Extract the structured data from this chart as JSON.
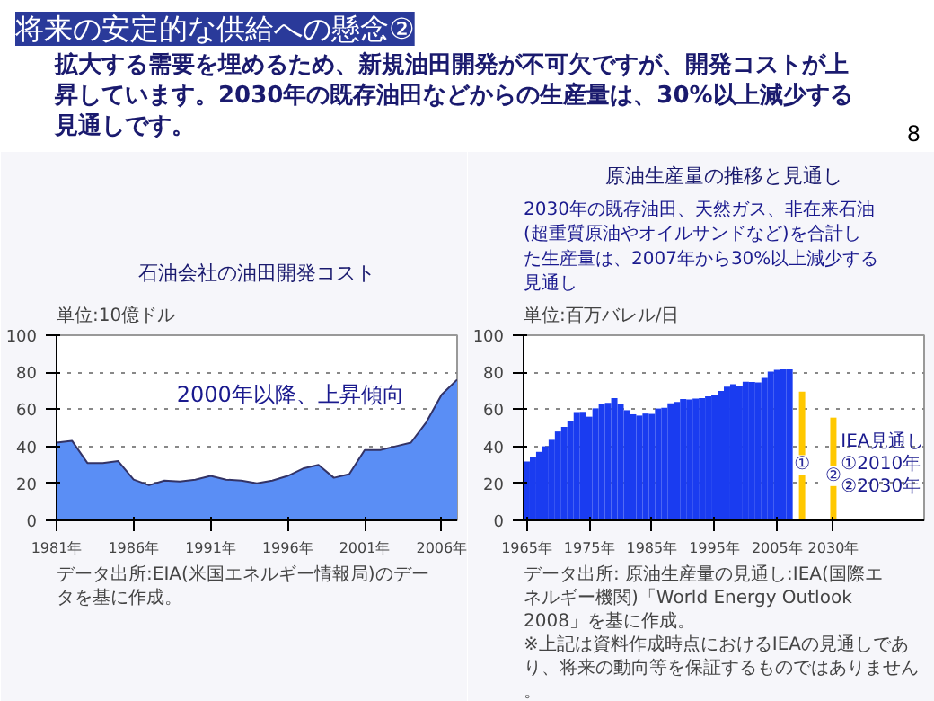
{
  "chart_data": [
    {
      "type": "other",
      "title": "将来の安定的な供給への懸念②",
      "annotations": [
        "拡大する需要を埋めるため、新規油田開発が不可欠ですが、開発コストが上昇しています。2030年の既存油田などからの生産量は、30%以上減少する見通しです。",
        "8"
      ]
    },
    {
      "type": "area",
      "title": "石油会社の油田開発コスト",
      "ylabel": "単位:10億ドル",
      "xlim": [
        1981,
        2007
      ],
      "ylim": [
        0,
        100
      ],
      "yticks": [
        0,
        20,
        40,
        60,
        80,
        100
      ],
      "xticks": [
        {
          "value": 1981,
          "label": "1981年"
        },
        {
          "value": 1986,
          "label": "1986年"
        },
        {
          "value": 1991,
          "label": "1991年"
        },
        {
          "value": 1996,
          "label": "1996年"
        },
        {
          "value": 2001,
          "label": "2001年"
        },
        {
          "value": 2006,
          "label": "2006年"
        }
      ],
      "grid": "y",
      "series": [
        {
          "type": "area",
          "color": "#5a8ef5",
          "x": [
            1981,
            1982,
            1983,
            1984,
            1985,
            1986,
            1987,
            1988,
            1989,
            1990,
            1991,
            1992,
            1993,
            1994,
            1995,
            1996,
            1997,
            1998,
            1999,
            2000,
            2001,
            2002,
            2003,
            2004,
            2005,
            2006,
            2007
          ],
          "values": [
            42,
            43,
            31,
            31,
            32,
            22,
            19,
            21.5,
            21,
            22,
            24,
            22,
            21.5,
            20,
            21.5,
            24,
            28,
            30,
            23,
            25,
            38,
            38,
            40,
            42,
            53,
            68,
            76
          ]
        }
      ],
      "annotations": [
        "2000年以降、上昇傾向",
        "データ出所:EIA(米国エネルギー情報局)のデータを基に作成。"
      ]
    },
    {
      "type": "bar",
      "title": "原油生産量の推移と見通し",
      "subtitle": "2030年の既存油田、天然ガス、非在来石油(超重質原油やオイルサンドなど)を合計した生産量は、2007年から30%以上減少する見通し",
      "ylabel": "単位:百万バレル/日",
      "ylim": [
        0,
        100
      ],
      "yticks": [
        0,
        20,
        40,
        60,
        80,
        100
      ],
      "categories": [
        "1965年",
        null,
        null,
        null,
        null,
        null,
        null,
        null,
        null,
        null,
        "1975年",
        null,
        null,
        null,
        null,
        null,
        null,
        null,
        null,
        null,
        "1985年",
        null,
        null,
        null,
        null,
        null,
        null,
        null,
        null,
        null,
        "1995年",
        null,
        null,
        null,
        null,
        null,
        null,
        null,
        null,
        null,
        "2005年",
        null,
        null,
        null,
        null,
        null,
        null,
        null,
        null,
        "2030年"
      ],
      "grid": "y",
      "series": [
        {
          "type": "bar",
          "color": "#1a3cf0",
          "values": [
            31.8,
            34,
            37,
            40,
            43.5,
            48,
            50.5,
            53.5,
            58.5,
            58.6,
            56,
            60.5,
            63,
            63.5,
            66,
            63,
            59.5,
            57.3,
            56.6,
            57.7,
            57.5,
            60.4,
            60.8,
            63.2,
            64,
            65.5,
            65.3,
            65.8,
            66,
            67,
            68,
            69.9,
            72.2,
            73.6,
            72.3,
            74.9,
            74.8,
            74.5,
            77,
            80.3,
            81.3,
            81.5,
            81.5,
            null,
            null,
            null,
            null,
            null,
            null,
            null
          ]
        },
        {
          "type": "bar",
          "color": "#ffc800",
          "values": [
            null,
            null,
            null,
            null,
            null,
            null,
            null,
            null,
            null,
            null,
            null,
            null,
            null,
            null,
            null,
            null,
            null,
            null,
            null,
            null,
            null,
            null,
            null,
            null,
            null,
            null,
            null,
            null,
            null,
            null,
            null,
            null,
            null,
            null,
            null,
            null,
            null,
            null,
            null,
            null,
            null,
            null,
            null,
            null,
            69.5,
            null,
            null,
            null,
            null,
            55.5
          ],
          "value_labels": [
            null,
            null,
            null,
            null,
            null,
            null,
            null,
            null,
            null,
            null,
            null,
            null,
            null,
            null,
            null,
            null,
            null,
            null,
            null,
            null,
            null,
            null,
            null,
            null,
            null,
            null,
            null,
            null,
            null,
            null,
            null,
            null,
            null,
            null,
            null,
            null,
            null,
            null,
            null,
            null,
            null,
            null,
            null,
            null,
            "①",
            null,
            null,
            null,
            null,
            "②"
          ]
        }
      ],
      "annotations": [
        "IEA見通し",
        "①2010年",
        "②2030年",
        "データ出所: 原油生産量の見通し:IEA(国際エネルギー機関)「World Energy Outlook 2008」を基に作成。",
        "※上記は資料作成時点におけるIEAの見通しであり、将来の動向等を保証するものではありません。"
      ]
    }
  ]
}
